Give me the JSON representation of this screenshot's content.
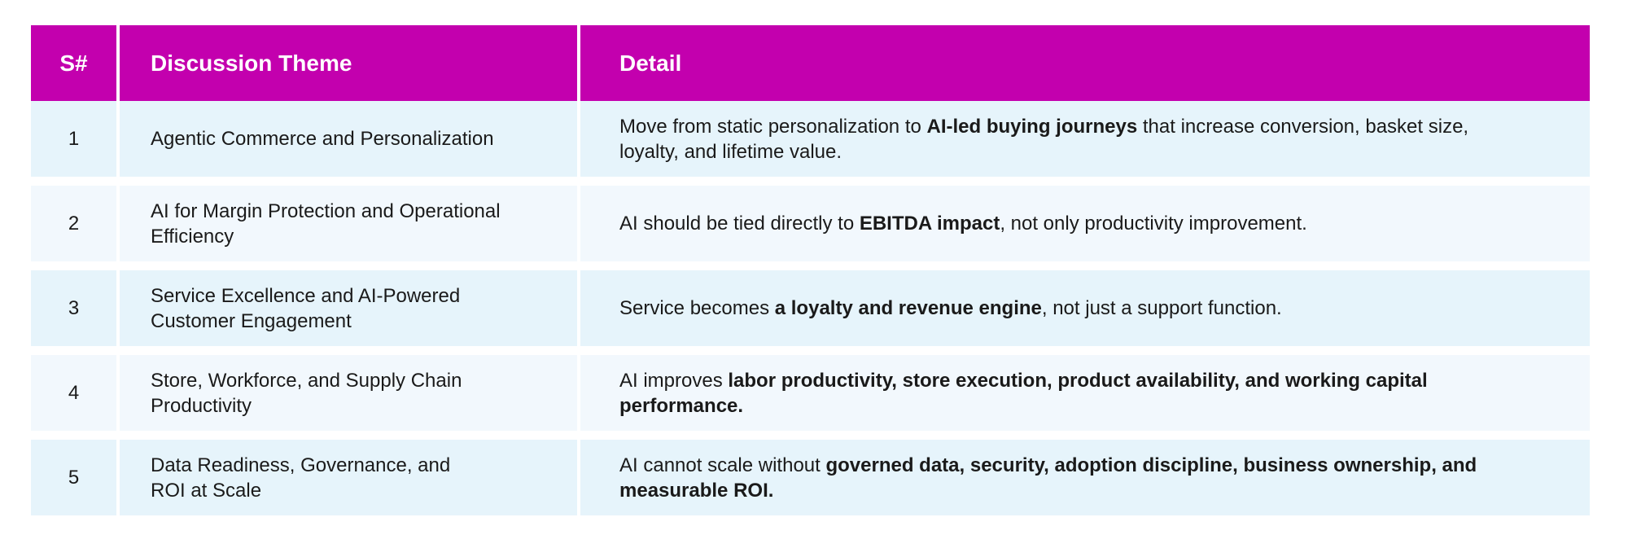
{
  "table": {
    "header": [
      "S#",
      "Discussion Theme",
      "Detail"
    ],
    "rows": [
      {
        "num": "1",
        "theme": "Agentic Commerce and Personalization",
        "detail": [
          {
            "text": "Move from static personalization to ",
            "bold": false
          },
          {
            "text": "AI-led buying journeys",
            "bold": true
          },
          {
            "text": " that increase conversion, basket size, loyalty, and lifetime value.",
            "bold": false
          }
        ]
      },
      {
        "num": "2",
        "theme": "AI for Margin Protection and Operational Efficiency",
        "detail": [
          {
            "text": "AI should be tied directly to ",
            "bold": false
          },
          {
            "text": "EBITDA impact",
            "bold": true
          },
          {
            "text": ", not only productivity improvement.",
            "bold": false
          }
        ]
      },
      {
        "num": "3",
        "theme": "Service Excellence and AI-Powered Customer Engagement",
        "detail": [
          {
            "text": "Service becomes ",
            "bold": false
          },
          {
            "text": "a loyalty and revenue engine",
            "bold": true
          },
          {
            "text": ", not just a support function.",
            "bold": false
          }
        ]
      },
      {
        "num": "4",
        "theme": "Store, Workforce, and Supply Chain Productivity",
        "detail": [
          {
            "text": "AI improves ",
            "bold": false
          },
          {
            "text": "labor productivity, store execution, product availability, and working capital performance.",
            "bold": true
          }
        ]
      },
      {
        "num": "5",
        "theme": "Data Readiness, Governance, and\nROI at Scale",
        "detail": [
          {
            "text": "AI cannot scale without ",
            "bold": false
          },
          {
            "text": "governed data, security, adoption discipline, business ownership, and measurable ROI.",
            "bold": true
          }
        ]
      }
    ]
  }
}
